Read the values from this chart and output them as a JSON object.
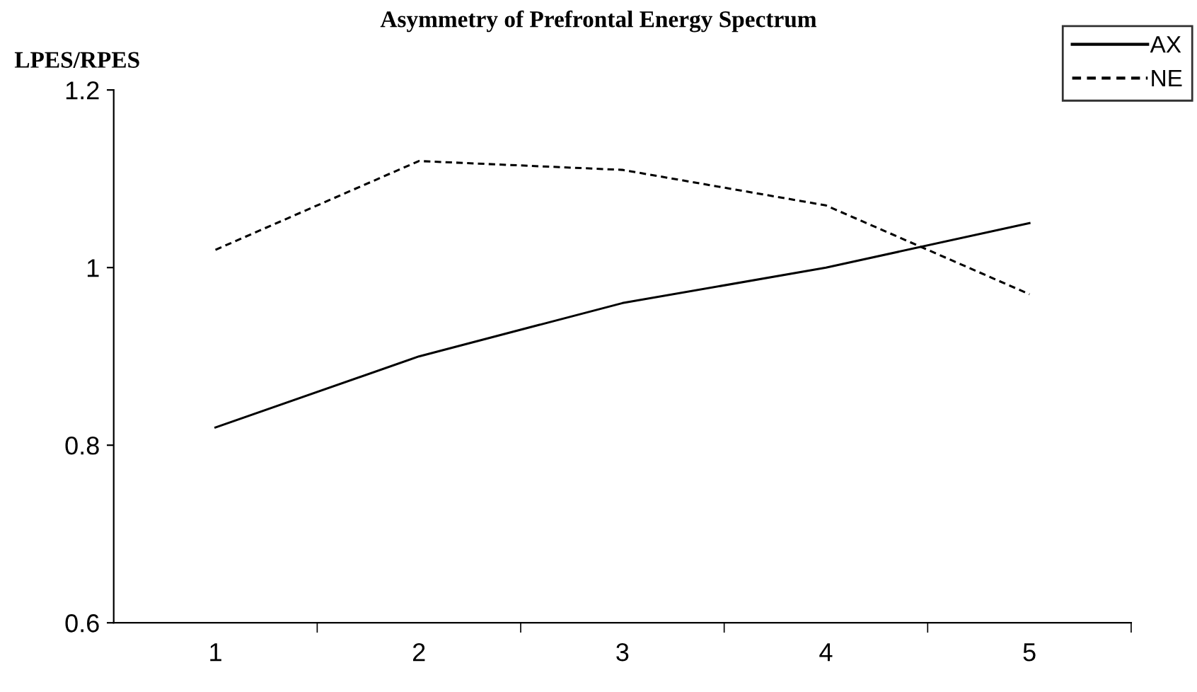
{
  "chart_data": {
    "type": "line",
    "title": "Asymmetry of Prefrontal Energy Spectrum",
    "ylabel": "LPES/RPES",
    "categories": [
      "1",
      "2",
      "3",
      "4",
      "5"
    ],
    "series": [
      {
        "name": "AX",
        "color": "#000000",
        "line_style": "solid",
        "values": [
          0.82,
          0.9,
          0.96,
          1.0,
          1.05
        ]
      },
      {
        "name": "NE",
        "color": "#000000",
        "line_style": "dashed",
        "values": [
          1.02,
          1.12,
          1.11,
          1.07,
          0.97
        ]
      }
    ],
    "ylim": [
      0.6,
      1.2
    ],
    "yticks": [
      0.6,
      0.8,
      1,
      1.2
    ],
    "grid": false,
    "legend": "top right",
    "marker": "none"
  }
}
